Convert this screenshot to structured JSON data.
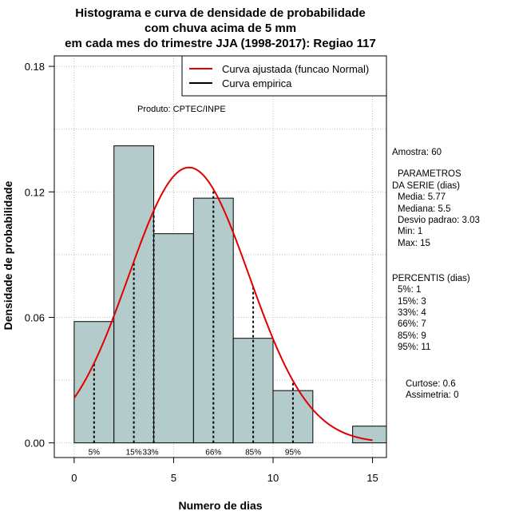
{
  "chart_data": {
    "type": "bar",
    "title_lines": [
      "Histograma e curva de densidade de probabilidade",
      "com chuva acima de 5 mm",
      "em cada mes do trimestre JJA (1998-2017): Regiao 117"
    ],
    "xlabel": "Numero de dias",
    "ylabel": "Densidade de probabilidade",
    "xlim": [
      -1,
      15.7
    ],
    "ylim": [
      -0.007,
      0.185
    ],
    "x_ticks": [
      0,
      5,
      10,
      15
    ],
    "y_ticks": [
      0.0,
      0.06,
      0.12,
      0.18
    ],
    "y_tick_labels": [
      "0.00",
      "0.06",
      "0.12",
      "0.18"
    ],
    "grid": true,
    "bins": [
      {
        "start": 0,
        "end": 2,
        "density": 0.058
      },
      {
        "start": 2,
        "end": 4,
        "density": 0.142
      },
      {
        "start": 4,
        "end": 6,
        "density": 0.1
      },
      {
        "start": 6,
        "end": 8,
        "density": 0.117
      },
      {
        "start": 8,
        "end": 10,
        "density": 0.05
      },
      {
        "start": 10,
        "end": 12,
        "density": 0.025
      },
      {
        "start": 12,
        "end": 14,
        "density": 0.0
      },
      {
        "start": 14,
        "end": 16,
        "density": 0.008
      }
    ],
    "normal_fit": {
      "mean": 5.77,
      "sd": 3.03,
      "x_from": 0,
      "x_to": 15
    },
    "percentile_lines": [
      {
        "label": "5%",
        "x": 1
      },
      {
        "label": "15%",
        "x": 3
      },
      {
        "label": "33%",
        "x": 4
      },
      {
        "label": "66%",
        "x": 7
      },
      {
        "label": "85%",
        "x": 9
      },
      {
        "label": "95%",
        "x": 11
      }
    ],
    "legend": {
      "position": "top-right",
      "entries": [
        {
          "label": "Curva ajustada (funcao Normal)",
          "color": "#e00000"
        },
        {
          "label": "Curva empirica",
          "color": "#000000"
        }
      ]
    },
    "annotation": "Produto: CPTEC/INPE",
    "colors": {
      "bar_fill": "#b3cbcb",
      "curve": "#e00000",
      "grid": "#bdbdbd"
    }
  },
  "side_panel": {
    "sample": "Amostra: 60",
    "params_title_1": "PARAMETROS",
    "params_title_2": "DA SERIE (dias)",
    "params": [
      "Media: 5.77",
      "Mediana: 5.5",
      "Desvio padrao: 3.03",
      "Min: 1",
      "Max: 15"
    ],
    "percentis_title": "PERCENTIS (dias)",
    "percentis": [
      "5%: 1",
      "15%: 3",
      "33%: 4",
      "66%: 7",
      "85%: 9",
      "95%: 11"
    ],
    "curtose": "Curtose: 0.6",
    "assimetria": "Assimetria: 0"
  }
}
